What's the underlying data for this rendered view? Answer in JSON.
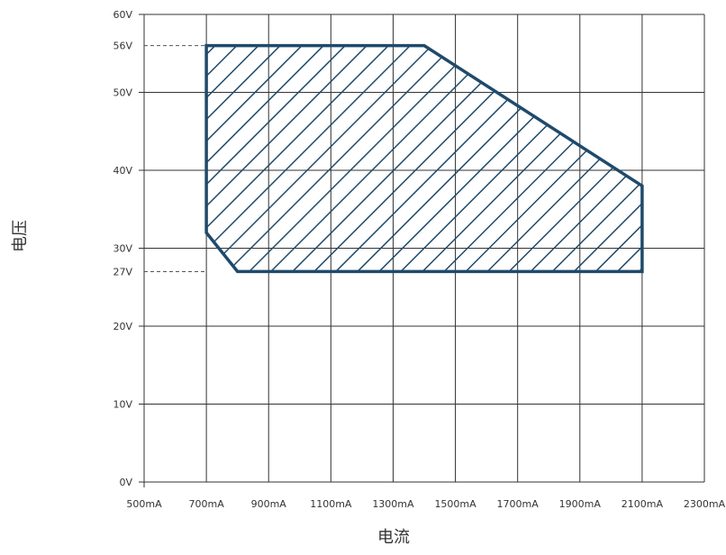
{
  "chart_data": {
    "type": "area",
    "title": "",
    "xlabel": "电流",
    "ylabel": "电压",
    "x_ticks": [
      "500mA",
      "700mA",
      "900mA",
      "1100mA",
      "1300mA",
      "1500mA",
      "1700mA",
      "1900mA",
      "2100mA",
      "2300mA"
    ],
    "y_ticks": [
      "0V",
      "10V",
      "20V",
      "30V",
      "40V",
      "50V",
      "60V"
    ],
    "extra_y_ticks": [
      "56V",
      "27V"
    ],
    "xlim": [
      500,
      2300
    ],
    "ylim": [
      0,
      60
    ],
    "x_grid_values": [
      500,
      700,
      900,
      1100,
      1300,
      1500,
      1700,
      1900,
      2100,
      2300
    ],
    "y_grid_values": [
      0,
      10,
      20,
      30,
      40,
      50,
      60
    ],
    "extra_y_values": [
      56,
      27
    ],
    "grid": true,
    "region": {
      "fill": "hatched",
      "color": "#1f4a6b",
      "points": [
        {
          "x": 700,
          "y": 56
        },
        {
          "x": 1400,
          "y": 56
        },
        {
          "x": 2100,
          "y": 38
        },
        {
          "x": 2100,
          "y": 27
        },
        {
          "x": 800,
          "y": 27
        },
        {
          "x": 700,
          "y": 32
        }
      ]
    },
    "reference_lines": [
      {
        "y": 56,
        "style": "dashed"
      },
      {
        "y": 27,
        "style": "dashed"
      }
    ]
  },
  "colors": {
    "grid": "#333333",
    "region": "#1f4a6b",
    "text": "#333333"
  }
}
